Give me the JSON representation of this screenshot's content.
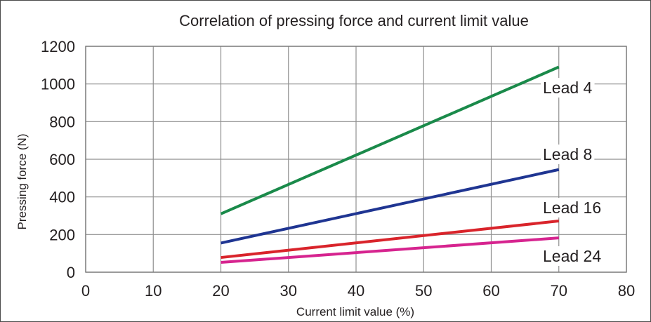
{
  "chart_data": {
    "type": "line",
    "title": "Correlation of pressing force and current limit value",
    "xlabel": "Current limit value (%)",
    "ylabel": "Pressing force (N)",
    "xlim": [
      0,
      80
    ],
    "ylim": [
      0,
      1200
    ],
    "xticks": [
      0,
      10,
      20,
      30,
      40,
      50,
      60,
      70,
      80
    ],
    "yticks": [
      0,
      200,
      400,
      600,
      800,
      1000,
      1200
    ],
    "grid": true,
    "series": [
      {
        "name": "Lead 4",
        "color": "#1a8a4a",
        "x": [
          20,
          70
        ],
        "y": [
          310,
          1090
        ]
      },
      {
        "name": "Lead 8",
        "color": "#1f3592",
        "x": [
          20,
          70
        ],
        "y": [
          155,
          545
        ]
      },
      {
        "name": "Lead 16",
        "color": "#d9242b",
        "x": [
          20,
          70
        ],
        "y": [
          78,
          272
        ]
      },
      {
        "name": "Lead 24",
        "color": "#d6248f",
        "x": [
          20,
          70
        ],
        "y": [
          52,
          182
        ]
      }
    ]
  }
}
